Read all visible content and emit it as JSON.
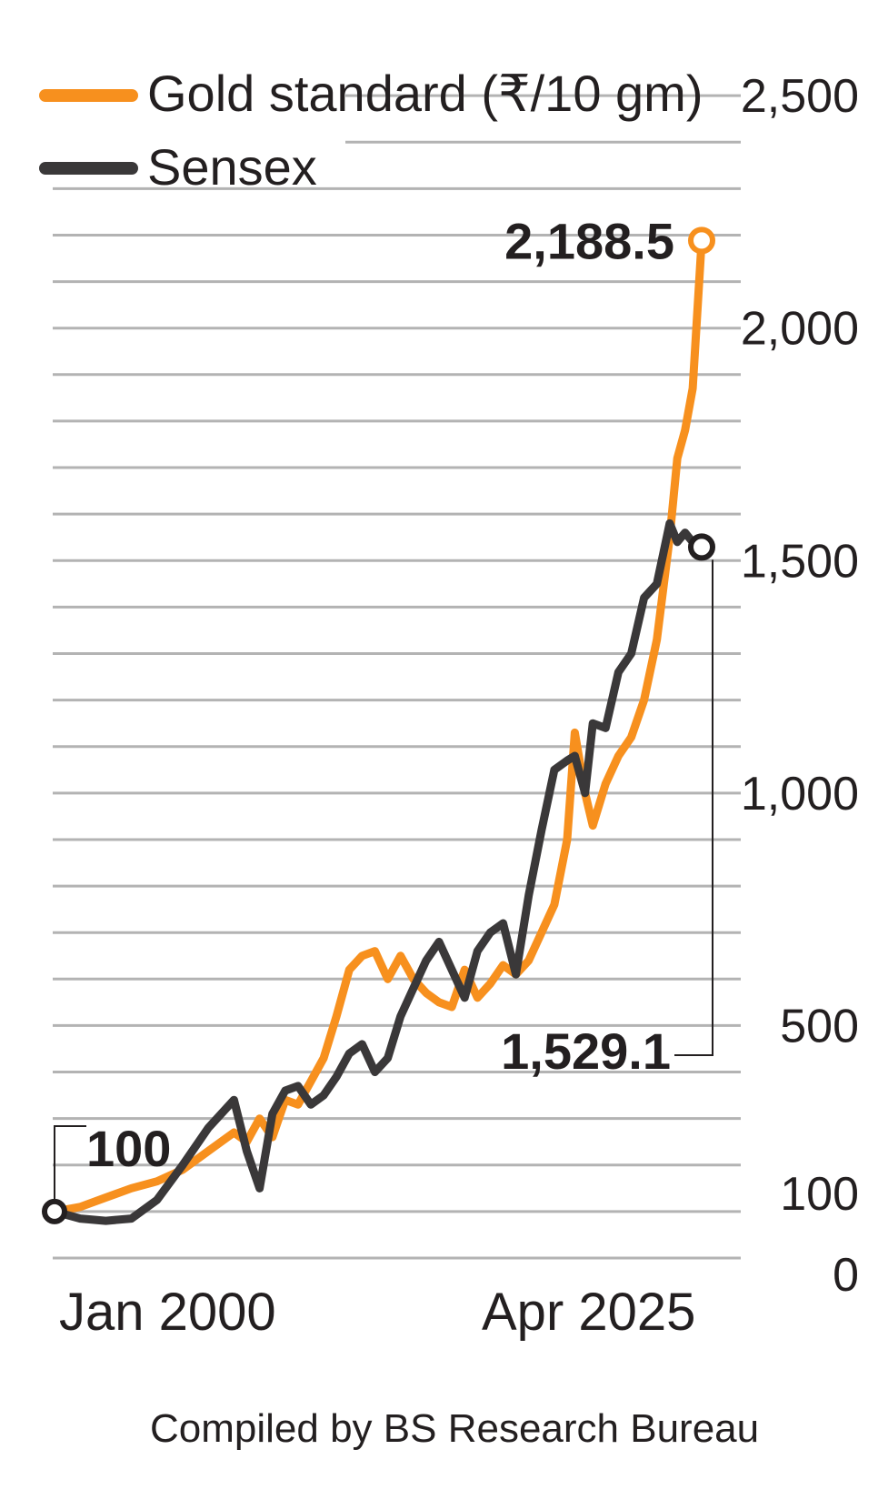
{
  "chart_data": {
    "type": "line",
    "x_tick_labels": [
      "Jan 2000",
      "Apr 2025"
    ],
    "y_tick_labels": [
      "2,500",
      "2,000",
      "1,500",
      "1,000",
      "500",
      "100",
      "0"
    ],
    "y_tick_values": [
      2500,
      2000,
      1500,
      1000,
      500,
      100,
      0
    ],
    "ylim": [
      0,
      2600
    ],
    "grid": true,
    "legend_position": "top-left",
    "colors": {
      "gold": "#f7901e",
      "sensex": "#3a3839",
      "grid": "#b3b3b3",
      "text": "#231f20"
    },
    "x": [
      2000.0,
      2001.0,
      2002.0,
      2003.0,
      2004.0,
      2005.0,
      2006.0,
      2007.0,
      2007.5,
      2008.0,
      2008.5,
      2009.0,
      2009.5,
      2010.0,
      2010.5,
      2011.0,
      2011.5,
      2012.0,
      2012.5,
      2013.0,
      2013.5,
      2014.0,
      2014.5,
      2015.0,
      2015.5,
      2016.0,
      2016.5,
      2017.0,
      2017.5,
      2018.0,
      2018.5,
      2019.0,
      2019.5,
      2020.0,
      2020.3,
      2020.7,
      2021.0,
      2021.5,
      2022.0,
      2022.5,
      2023.0,
      2023.5,
      2024.0,
      2024.3,
      2024.6,
      2024.9,
      2025.25
    ],
    "series": [
      {
        "name": "Gold standard (₹/10 gm)",
        "values": [
          100,
          110,
          130,
          150,
          165,
          190,
          230,
          270,
          250,
          300,
          260,
          340,
          330,
          380,
          430,
          520,
          620,
          650,
          660,
          600,
          650,
          600,
          570,
          550,
          540,
          620,
          560,
          590,
          630,
          610,
          640,
          700,
          760,
          900,
          1130,
          1000,
          930,
          1020,
          1080,
          1120,
          1200,
          1330,
          1550,
          1720,
          1780,
          1870,
          2188.5
        ]
      },
      {
        "name": "Sensex",
        "values": [
          100,
          85,
          80,
          85,
          125,
          200,
          280,
          340,
          230,
          150,
          310,
          360,
          370,
          330,
          350,
          390,
          440,
          460,
          400,
          430,
          520,
          580,
          640,
          680,
          620,
          560,
          660,
          700,
          720,
          610,
          780,
          920,
          1050,
          1070,
          1080,
          1000,
          1150,
          1140,
          1260,
          1300,
          1420,
          1450,
          1580,
          1540,
          1560,
          1540,
          1529.1
        ]
      }
    ],
    "annotations": {
      "start_value": "100",
      "gold_end": "2,188.5",
      "sensex_end": "1,529.1"
    }
  },
  "source_note": "Compiled by BS Research Bureau"
}
